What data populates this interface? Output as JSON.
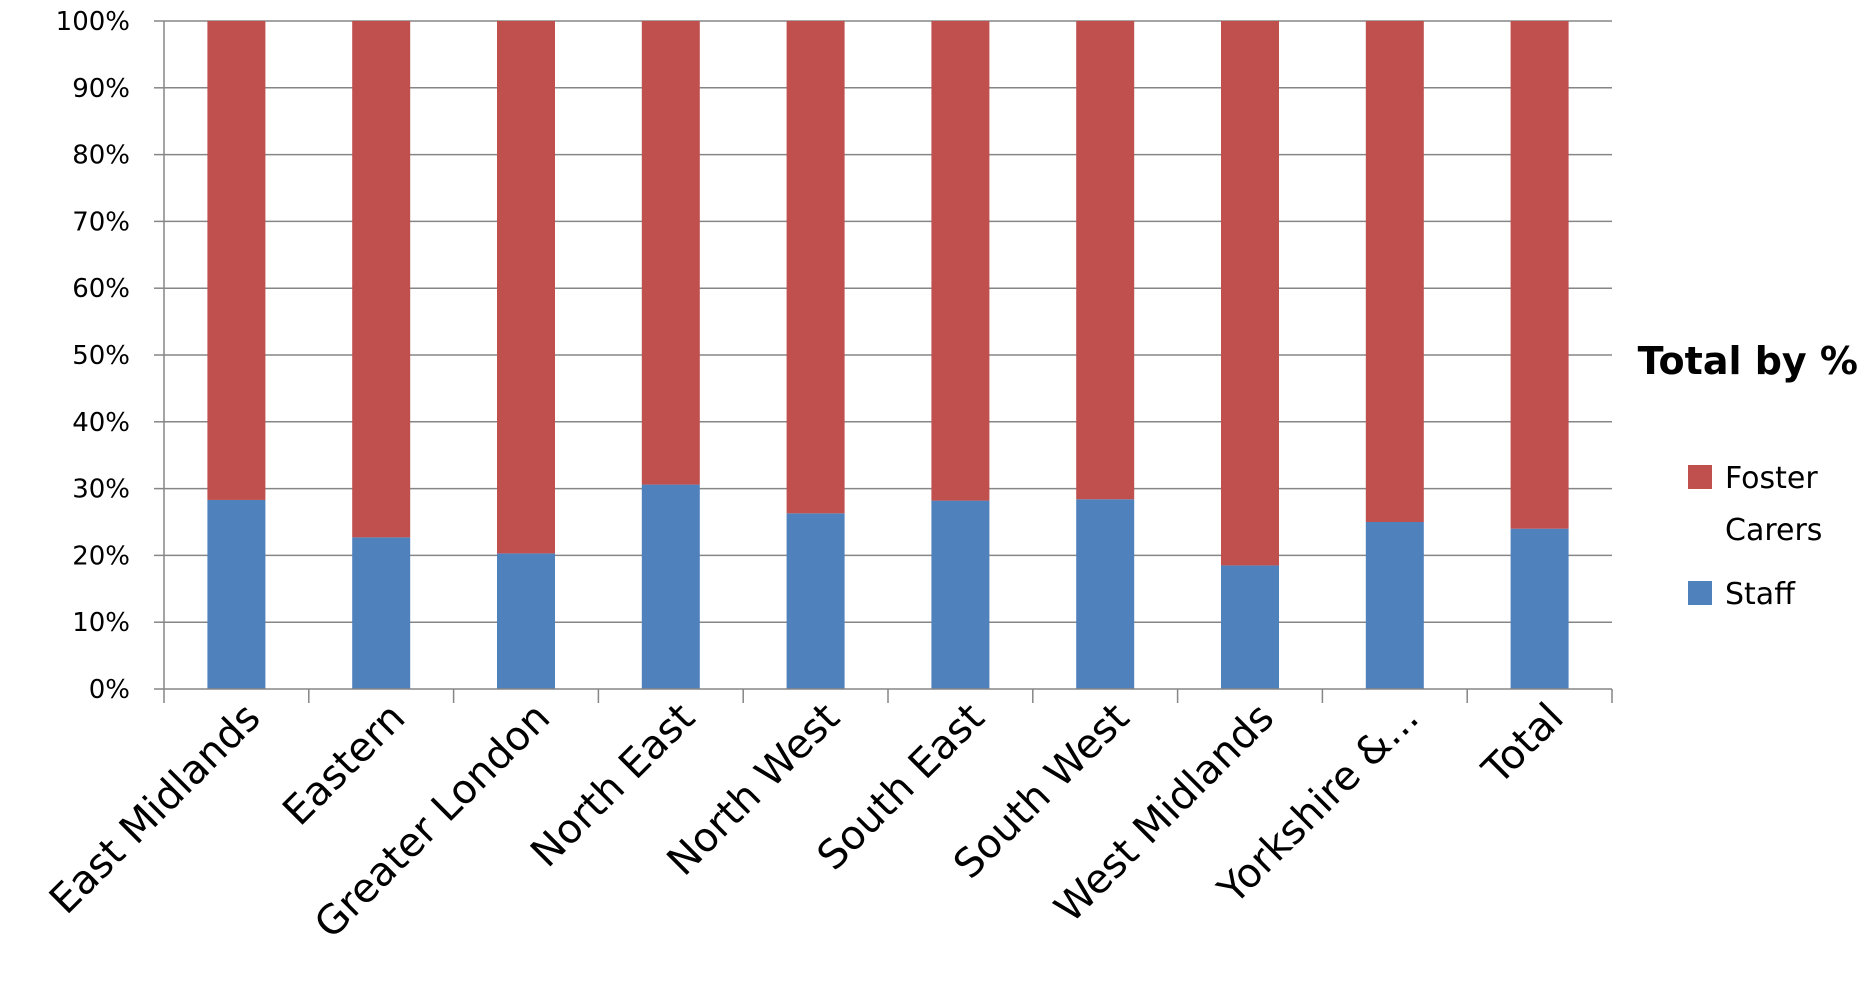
{
  "chart_data": {
    "type": "bar",
    "stacked": true,
    "percent": true,
    "categories": [
      "East Midlands",
      "Eastern",
      "Greater London",
      "North East",
      "North West",
      "South East",
      "South West",
      "West Midlands",
      "Yorkshire &...",
      "Total"
    ],
    "series": [
      {
        "name": "Staff",
        "color": "#4f81bd",
        "values": [
          28.3,
          22.7,
          20.3,
          30.6,
          26.3,
          28.2,
          28.4,
          18.5,
          25.0,
          24.0
        ]
      },
      {
        "name": "Foster Carers",
        "color": "#c0504d",
        "values": [
          71.7,
          77.3,
          79.7,
          69.4,
          73.7,
          71.8,
          71.6,
          81.5,
          75.0,
          76.0
        ]
      }
    ],
    "legend_title": "Total by %",
    "legend_lines": {
      "foster_carers": [
        "Foster",
        "Carers"
      ],
      "staff": [
        "Staff"
      ]
    },
    "yticks": [
      "0%",
      "10%",
      "20%",
      "30%",
      "40%",
      "50%",
      "60%",
      "70%",
      "80%",
      "90%",
      "100%"
    ],
    "ylim": [
      0,
      100
    ],
    "xlabel": "",
    "ylabel": "",
    "title": "",
    "grid": true,
    "legend_position": "right"
  }
}
